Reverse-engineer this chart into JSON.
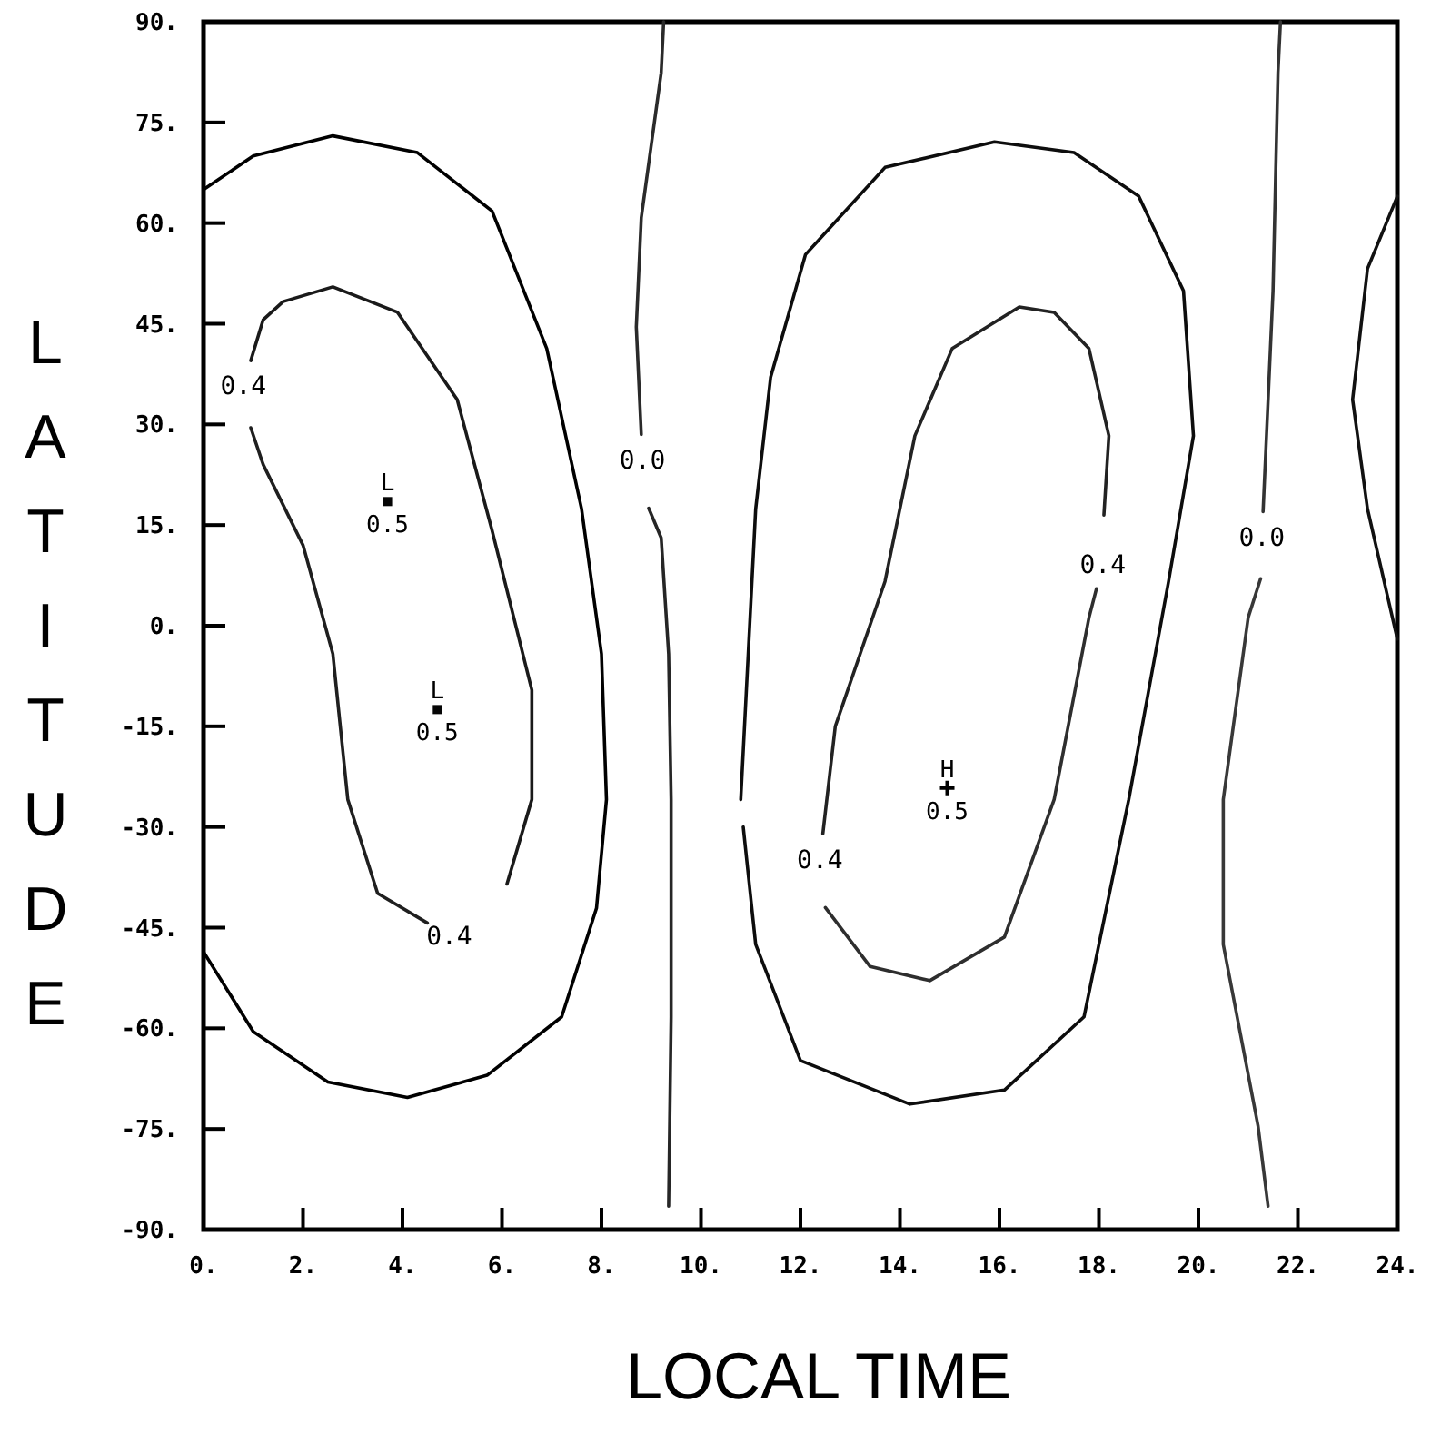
{
  "chart_data": {
    "type": "line",
    "xlabel": "LOCAL TIME",
    "ylabel": "LATITUDE",
    "xlim": [
      0,
      24
    ],
    "ylim": [
      -90,
      90
    ],
    "xticks": [
      {
        "value": 0,
        "label": "0."
      },
      {
        "value": 2,
        "label": "2."
      },
      {
        "value": 4,
        "label": "4."
      },
      {
        "value": 6,
        "label": "6."
      },
      {
        "value": 8,
        "label": "8."
      },
      {
        "value": 10,
        "label": "10."
      },
      {
        "value": 12,
        "label": "12."
      },
      {
        "value": 14,
        "label": "14."
      },
      {
        "value": 16,
        "label": "16."
      },
      {
        "value": 18,
        "label": "18."
      },
      {
        "value": 20,
        "label": "20."
      },
      {
        "value": 22,
        "label": "22."
      },
      {
        "value": 24,
        "label": "24."
      }
    ],
    "yticks": [
      {
        "value": 90,
        "label": "90."
      },
      {
        "value": 75,
        "label": "75."
      },
      {
        "value": 60,
        "label": "60."
      },
      {
        "value": 45,
        "label": "45."
      },
      {
        "value": 30,
        "label": "30."
      },
      {
        "value": 15,
        "label": "15."
      },
      {
        "value": 0,
        "label": "0."
      },
      {
        "value": -15,
        "label": "-15."
      },
      {
        "value": -30,
        "label": "-30."
      },
      {
        "value": -45,
        "label": "-45."
      },
      {
        "value": -60,
        "label": "-60."
      },
      {
        "value": -75,
        "label": "-75."
      },
      {
        "value": -90,
        "label": "-90."
      }
    ],
    "grid": false,
    "marker": "none",
    "line_style": "solid",
    "series": [
      {
        "color": "#000000",
        "x": [
          0,
          1.0,
          2.6,
          4.3,
          5.8,
          6.9,
          7.6,
          8.0,
          8.1,
          7.9,
          7.2,
          5.7,
          4.1,
          2.5,
          1.0,
          0
        ],
        "values": [
          65,
          70,
          73,
          70.5,
          61.8,
          41.3,
          17.4,
          -4.2,
          -25.9,
          -42.1,
          -58.3,
          -67,
          -70.3,
          -68,
          -60.5,
          -48.6
        ]
      },
      {
        "name": "0.4",
        "color": "#1a1a1a",
        "x": [
          0.95,
          1.2,
          1.6,
          2.6,
          3.9,
          5.1,
          5.8,
          6.6,
          6.6,
          6.1
        ],
        "values": [
          39.5,
          45.6,
          48.3,
          50.5,
          46.7,
          33.7,
          14.2,
          -9.6,
          -25.9,
          -38.5
        ]
      },
      {
        "name": "0.4",
        "color": "#1f1f1f",
        "x": [
          4.5,
          3.5,
          2.9,
          2.6,
          2.0,
          1.2,
          0.95
        ],
        "values": [
          -44.3,
          -39.9,
          -25.9,
          -4.2,
          12,
          24,
          29.5
        ]
      },
      {
        "name": "0.0",
        "color": "#2a2a2a",
        "x": [
          8.8,
          8.7,
          8.8,
          9.2,
          9.25
        ],
        "values": [
          28.5,
          44.5,
          60.8,
          82.4,
          90
        ]
      },
      {
        "color": "#262626",
        "x": [
          8.95,
          9.2,
          9.35,
          9.4,
          9.4,
          9.35
        ],
        "values": [
          17.5,
          13.1,
          -4.2,
          -25.9,
          -58.3,
          -86.5
        ]
      },
      {
        "color": "#0d0d0d",
        "x": [
          10.8,
          11.1,
          11.4,
          12.1,
          13.7,
          15.9,
          17.5,
          18.8,
          19.7,
          19.9,
          19.4,
          18.6,
          17.7,
          16.1,
          14.2,
          12.0,
          11.1,
          10.85
        ],
        "values": [
          -25.9,
          17.4,
          37,
          55.3,
          68.3,
          72.1,
          70.5,
          64,
          49.9,
          28.3,
          6.6,
          -25.9,
          -58.3,
          -69.2,
          -71.3,
          -64.8,
          -47.5,
          -30
        ]
      },
      {
        "name": "0.4",
        "color": "#222222",
        "x": [
          12.45,
          12.7,
          13.7,
          14.3,
          15.05,
          16.4,
          17.1,
          17.8,
          18.2,
          18.1
        ],
        "values": [
          -31,
          -15,
          6.6,
          28.3,
          41.3,
          47.5,
          46.7,
          41.3,
          28.3,
          16.5
        ]
      },
      {
        "name": "0.4",
        "color": "#2e2e2e",
        "x": [
          17.95,
          17.8,
          17.1,
          16.1,
          14.6,
          13.4,
          12.5
        ],
        "values": [
          5.5,
          1.2,
          -25.9,
          -46.4,
          -52.9,
          -50.8,
          -42
        ]
      },
      {
        "name": "0.0",
        "color": "#333333",
        "x": [
          21.3,
          21.5,
          21.6,
          21.65
        ],
        "values": [
          17,
          49.9,
          82.4,
          90
        ]
      },
      {
        "color": "#383838",
        "x": [
          21.25,
          21.0,
          20.5,
          20.5,
          21.2,
          21.4
        ],
        "values": [
          7,
          1.2,
          -25.9,
          -47.5,
          -74.6,
          -86.5
        ]
      },
      {
        "color": "#111111",
        "x": [
          24,
          23.4,
          23.1,
          23.4,
          24
        ],
        "values": [
          64,
          53.2,
          33.7,
          17.4,
          -2
        ]
      },
      {
        "type": "scatter",
        "marker": "cross",
        "color": "#000000",
        "x": [
          14.95
        ],
        "values": [
          -24.2
        ]
      },
      {
        "type": "scatter",
        "marker": "square",
        "color": "#050505",
        "x": [
          3.7,
          4.7
        ],
        "values": [
          18.5,
          -12.5
        ]
      }
    ],
    "annotations": [
      {
        "text": "L\n0.5",
        "x": 3.7,
        "y": 18.5
      },
      {
        "text": "L\n0.5",
        "x": 4.7,
        "y": -12.5
      },
      {
        "text": "H\n0.5",
        "x": 14.95,
        "y": -24.2
      }
    ]
  }
}
